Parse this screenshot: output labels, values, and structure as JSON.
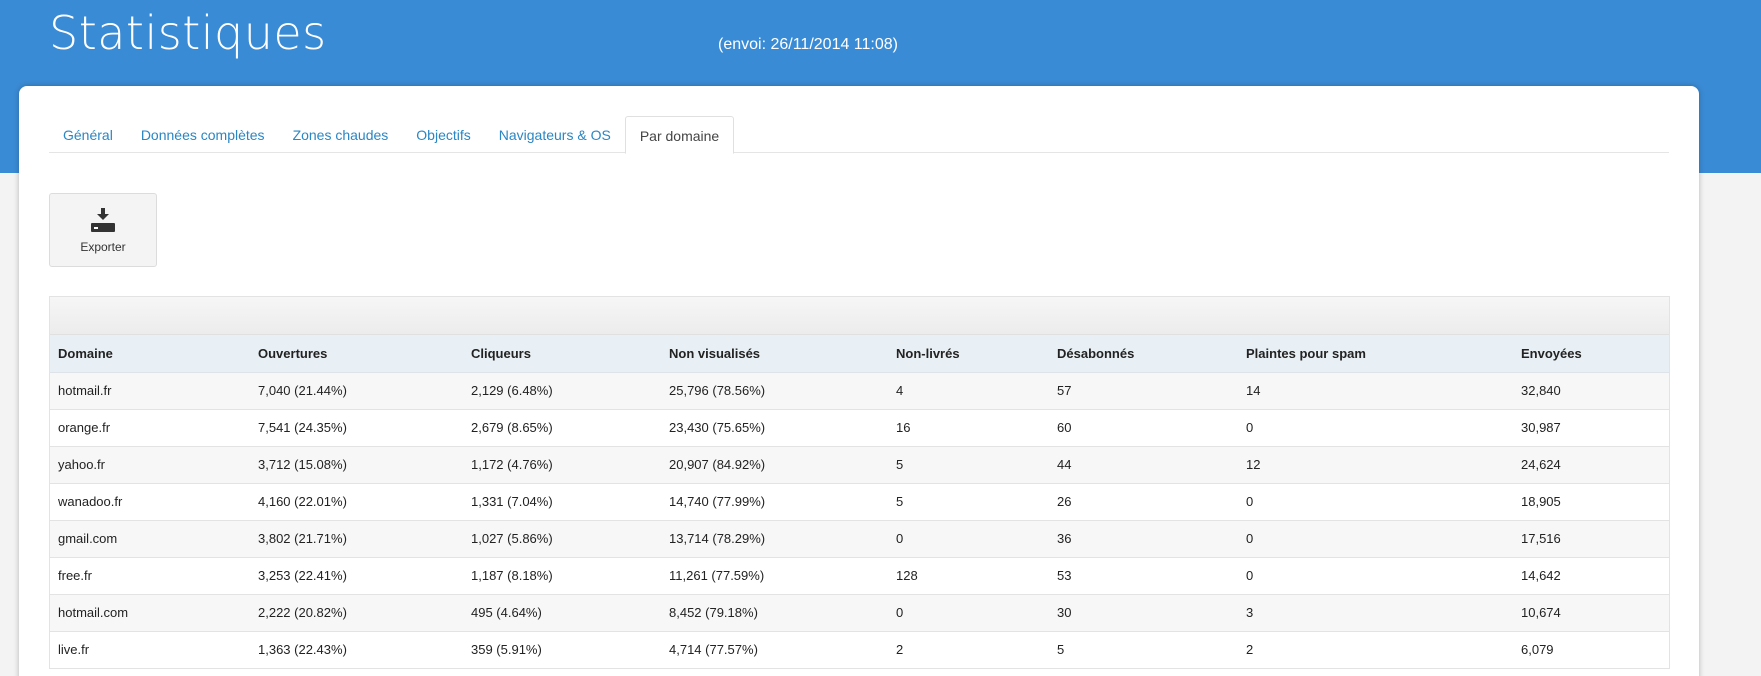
{
  "header": {
    "title": "Statistiques",
    "send_date": "(envoi: 26/11/2014 11:08)",
    "accent_color": "#3a8bd5"
  },
  "tabs": [
    {
      "label": "Général",
      "active": false
    },
    {
      "label": "Données complètes",
      "active": false
    },
    {
      "label": "Zones chaudes",
      "active": false
    },
    {
      "label": "Objectifs",
      "active": false
    },
    {
      "label": "Navigateurs & OS",
      "active": false
    },
    {
      "label": "Par domaine",
      "active": true
    }
  ],
  "toolbar": {
    "export_label": "Exporter",
    "export_icon": "download-icon"
  },
  "table": {
    "columns": [
      "Domaine",
      "Ouvertures",
      "Cliqueurs",
      "Non visualisés",
      "Non-livrés",
      "Désabonnés",
      "Plaintes pour spam",
      "Envoyées"
    ],
    "rows": [
      [
        "hotmail.fr",
        "7,040 (21.44%)",
        "2,129 (6.48%)",
        "25,796 (78.56%)",
        "4",
        "57",
        "14",
        "32,840"
      ],
      [
        "orange.fr",
        "7,541 (24.35%)",
        "2,679 (8.65%)",
        "23,430 (75.65%)",
        "16",
        "60",
        "0",
        "30,987"
      ],
      [
        "yahoo.fr",
        "3,712 (15.08%)",
        "1,172 (4.76%)",
        "20,907 (84.92%)",
        "5",
        "44",
        "12",
        "24,624"
      ],
      [
        "wanadoo.fr",
        "4,160 (22.01%)",
        "1,331 (7.04%)",
        "14,740 (77.99%)",
        "5",
        "26",
        "0",
        "18,905"
      ],
      [
        "gmail.com",
        "3,802 (21.71%)",
        "1,027 (5.86%)",
        "13,714 (78.29%)",
        "0",
        "36",
        "0",
        "17,516"
      ],
      [
        "free.fr",
        "3,253 (22.41%)",
        "1,187 (8.18%)",
        "11,261 (77.59%)",
        "128",
        "53",
        "0",
        "14,642"
      ],
      [
        "hotmail.com",
        "2,222 (20.82%)",
        "495 (4.64%)",
        "8,452 (79.18%)",
        "0",
        "30",
        "3",
        "10,674"
      ],
      [
        "live.fr",
        "1,363 (22.43%)",
        "359 (5.91%)",
        "4,714 (77.57%)",
        "2",
        "5",
        "2",
        "6,079"
      ]
    ]
  }
}
